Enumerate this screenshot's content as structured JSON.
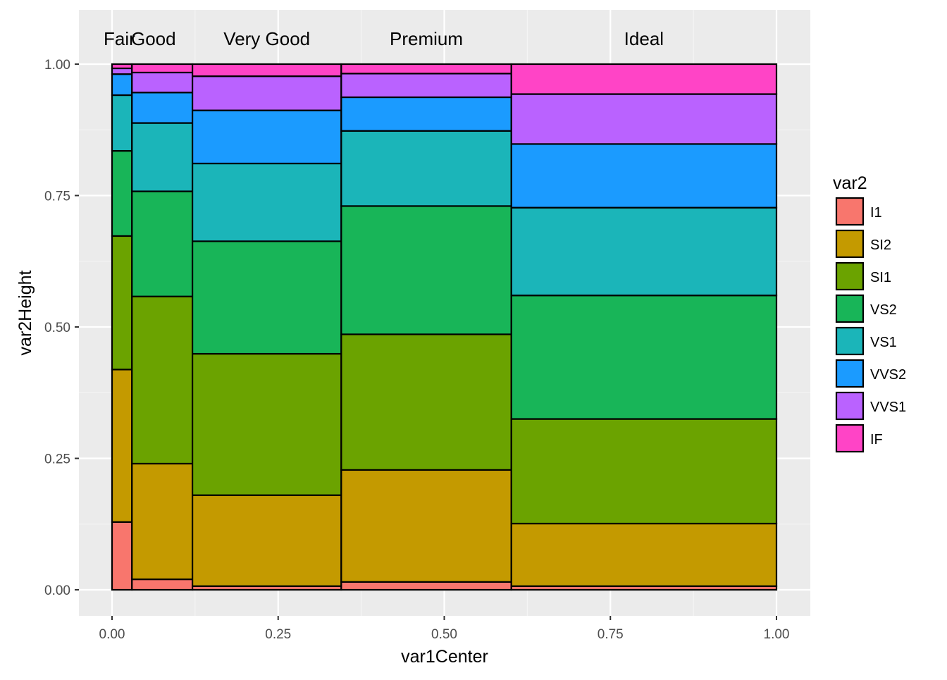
{
  "chart_data": {
    "type": "mosaic",
    "xlabel": "var1Center",
    "ylabel": "var2Height",
    "xlim": [
      0,
      1
    ],
    "ylim": [
      0,
      1
    ],
    "x_ticks": [
      "0.00",
      "0.25",
      "0.50",
      "0.75",
      "1.00"
    ],
    "y_ticks": [
      "0.00",
      "0.25",
      "0.50",
      "0.75",
      "1.00"
    ],
    "grid": true,
    "legend": {
      "title": "var2",
      "position": "right"
    },
    "series": [
      {
        "name": "I1",
        "color": "#F8766D"
      },
      {
        "name": "SI2",
        "color": "#C49A00"
      },
      {
        "name": "SI1",
        "color": "#6BA300"
      },
      {
        "name": "VS2",
        "color": "#18B558"
      },
      {
        "name": "VS1",
        "color": "#1BB5B9"
      },
      {
        "name": "VVS2",
        "color": "#1B9BFF"
      },
      {
        "name": "VVS1",
        "color": "#BA62FF"
      },
      {
        "name": "IF",
        "color": "#FF44C6"
      }
    ],
    "categories": [
      {
        "name": "Fair",
        "xmin": 0.0,
        "xmax": 0.03,
        "proportions": [
          0.129,
          0.29,
          0.254,
          0.162,
          0.106,
          0.04,
          0.011,
          0.008
        ]
      },
      {
        "name": "Good",
        "xmin": 0.03,
        "xmax": 0.121,
        "proportions": [
          0.02,
          0.22,
          0.318,
          0.2,
          0.13,
          0.058,
          0.038,
          0.016
        ]
      },
      {
        "name": "Very Good",
        "xmin": 0.121,
        "xmax": 0.345,
        "proportions": [
          0.007,
          0.173,
          0.269,
          0.214,
          0.148,
          0.101,
          0.065,
          0.023
        ]
      },
      {
        "name": "Premium",
        "xmin": 0.345,
        "xmax": 0.601,
        "proportions": [
          0.015,
          0.213,
          0.258,
          0.244,
          0.143,
          0.064,
          0.045,
          0.018
        ]
      },
      {
        "name": "Ideal",
        "xmin": 0.601,
        "xmax": 1.0,
        "proportions": [
          0.007,
          0.119,
          0.199,
          0.235,
          0.167,
          0.121,
          0.095,
          0.057
        ]
      }
    ]
  }
}
